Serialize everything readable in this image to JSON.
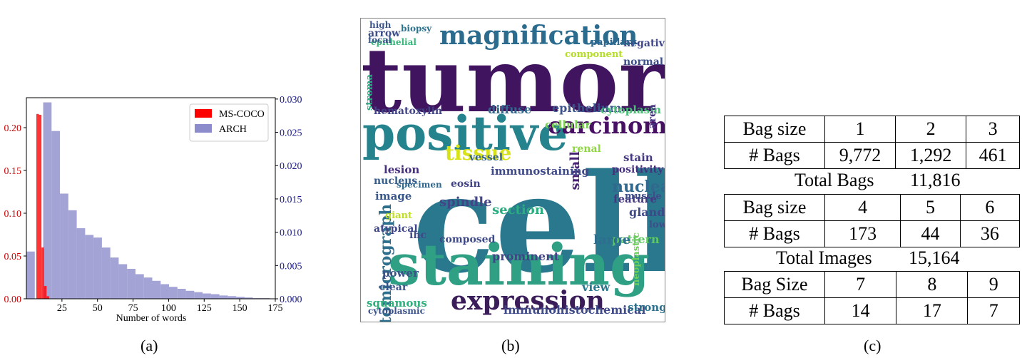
{
  "panels": {
    "a_caption": "(a)",
    "b_caption": "(b)",
    "c_caption": "(c)"
  },
  "chart_data": {
    "type": "bar",
    "xlabel": "Number of words",
    "x_ticks": [
      25,
      50,
      75,
      100,
      125,
      150,
      175
    ],
    "xlim": [
      0,
      175
    ],
    "y_left_ticks": [
      "0.00",
      "0.05",
      "0.10",
      "0.15",
      "0.20"
    ],
    "ylim_left": [
      0,
      0.235
    ],
    "y_right_ticks": [
      "0.000",
      "0.005",
      "0.010",
      "0.015",
      "0.020",
      "0.025",
      "0.030"
    ],
    "ylim_right": [
      0,
      0.0302
    ],
    "legend_position": "top-right",
    "series": [
      {
        "name": "MS-COCO",
        "axis": "left",
        "color": "#ff0000",
        "bin_width": 1.8,
        "bins_start": [
          7,
          8.8,
          10.6,
          12.4,
          14.2
        ],
        "values": [
          0.216,
          0.215,
          0.06,
          0.015,
          0.003
        ]
      },
      {
        "name": "ARCH",
        "axis": "right",
        "color": "#8c8ccc",
        "bin_width": 5.9,
        "bins_start": [
          0,
          5.9,
          11.8,
          17.7,
          23.6,
          29.5,
          35.4,
          41.3,
          47.2,
          53.1,
          59,
          64.9,
          70.8,
          76.7,
          82.6,
          88.5,
          94.4,
          100.3,
          106.2,
          112.1,
          118,
          123.9,
          129.8,
          135.7,
          141.6,
          147.5,
          153.4,
          159.3,
          165.2
        ],
        "values": [
          0.0071,
          0.0,
          0.0295,
          0.0252,
          0.0158,
          0.0133,
          0.0106,
          0.0096,
          0.0092,
          0.0077,
          0.0062,
          0.0052,
          0.0045,
          0.0037,
          0.0032,
          0.0027,
          0.0022,
          0.0018,
          0.0015,
          0.0012,
          0.001,
          0.0008,
          0.0007,
          0.0005,
          0.0004,
          0.0003,
          0.0002,
          0.0001,
          0.0001
        ]
      }
    ]
  },
  "wordcloud": {
    "words": [
      {
        "t": "tumor",
        "c": "#40145f"
      },
      {
        "t": "cell",
        "c": "#2a788e"
      },
      {
        "t": "staining",
        "c": "#2fa084"
      },
      {
        "t": "positive",
        "c": "#25838e"
      },
      {
        "t": "magnification",
        "c": "#2a6b8e"
      },
      {
        "t": "expression",
        "c": "#3b1d5a"
      },
      {
        "t": "carcinoma",
        "c": "#471063"
      },
      {
        "t": "tissue",
        "c": "#d8e219"
      },
      {
        "t": "nuclear",
        "c": "#31688e"
      },
      {
        "t": "immunohistochemical",
        "c": "#3e4a89"
      },
      {
        "t": "photomicrograph",
        "c": "#2e6f8e"
      },
      {
        "t": "epithelium",
        "c": "#3b528b"
      },
      {
        "t": "cytoplasm",
        "c": "#42be71"
      },
      {
        "t": "hematoxylin",
        "c": "#414487"
      },
      {
        "t": "nucleus",
        "c": "#355e8d"
      },
      {
        "t": "section",
        "c": "#29af7f"
      },
      {
        "t": "stain",
        "c": "#443983"
      },
      {
        "t": "area",
        "c": "#46337e"
      },
      {
        "t": "normal",
        "c": "#3c4f8a"
      },
      {
        "t": "negative",
        "c": "#3f4788"
      },
      {
        "t": "papillary",
        "c": "#31688e"
      },
      {
        "t": "epithelial",
        "c": "#35b779"
      },
      {
        "t": "arrow",
        "c": "#3d4e8a"
      },
      {
        "t": "biopsy",
        "c": "#2c728e"
      },
      {
        "t": "high",
        "c": "#3a548c"
      },
      {
        "t": "focal",
        "c": "#39568c"
      },
      {
        "t": "feature",
        "c": "#453781"
      },
      {
        "t": "gland",
        "c": "#3e4989"
      },
      {
        "t": "pattern",
        "c": "#5ec962"
      },
      {
        "t": "strong",
        "c": "#2c728e"
      },
      {
        "t": "squamous",
        "c": "#2db27d"
      },
      {
        "t": "cytoplasmic",
        "c": "#3b528b"
      },
      {
        "t": "spindle",
        "c": "#404688"
      },
      {
        "t": "lesion",
        "c": "#46307e"
      },
      {
        "t": "prominent",
        "c": "#414287"
      },
      {
        "t": "composed",
        "c": "#3e4989"
      },
      {
        "t": "diffuse",
        "c": "#31688e"
      },
      {
        "t": "vessel",
        "c": "#33638d"
      },
      {
        "t": "small",
        "c": "#482374"
      },
      {
        "t": "muscle",
        "c": "#3d4d8a"
      },
      {
        "t": "large",
        "c": "#2e6e8e"
      },
      {
        "t": "positivity",
        "c": "#46307e"
      },
      {
        "t": "low",
        "c": "#3c4f8a"
      },
      {
        "t": "view",
        "c": "#2a788e"
      },
      {
        "t": "power",
        "c": "#3b528b"
      },
      {
        "t": "atypical",
        "c": "#3f4788"
      },
      {
        "t": "image",
        "c": "#38588c"
      },
      {
        "t": "giant",
        "c": "#bddf26"
      },
      {
        "t": "ihc",
        "c": "#3e4a89"
      },
      {
        "t": "clear",
        "c": "#3b528b"
      },
      {
        "t": "cellular",
        "c": "#7ad151"
      },
      {
        "t": "stroma",
        "c": "#27ad81"
      },
      {
        "t": "eosin",
        "c": "#414487"
      },
      {
        "t": "neoplastic",
        "c": "#6ece58"
      },
      {
        "t": "immunostaining",
        "c": "#3e4a89"
      },
      {
        "t": "specimen",
        "c": "#31688e"
      },
      {
        "t": "renal",
        "c": "#90d743"
      },
      {
        "t": "component",
        "c": "#b5de2b"
      },
      {
        "t": "eosinophilic",
        "c": "#306a8e"
      }
    ]
  },
  "table": {
    "groups": [
      {
        "header_label": "Bag size",
        "sizes": [
          "1",
          "2",
          "3"
        ],
        "count_label": "# Bags",
        "counts": [
          "9,772",
          "1,292",
          "461"
        ]
      },
      {
        "header_label": "Bag size",
        "sizes": [
          "4",
          "5",
          "6"
        ],
        "count_label": "# Bags",
        "counts": [
          "173",
          "44",
          "36"
        ]
      },
      {
        "header_label": "Bag Size",
        "sizes": [
          "7",
          "8",
          "9"
        ],
        "count_label": "# Bags",
        "counts": [
          "14",
          "17",
          "7"
        ]
      }
    ],
    "total_bags_label": "Total Bags",
    "total_bags": "11,816",
    "total_images_label": "Total Images",
    "total_images": "15,164"
  }
}
